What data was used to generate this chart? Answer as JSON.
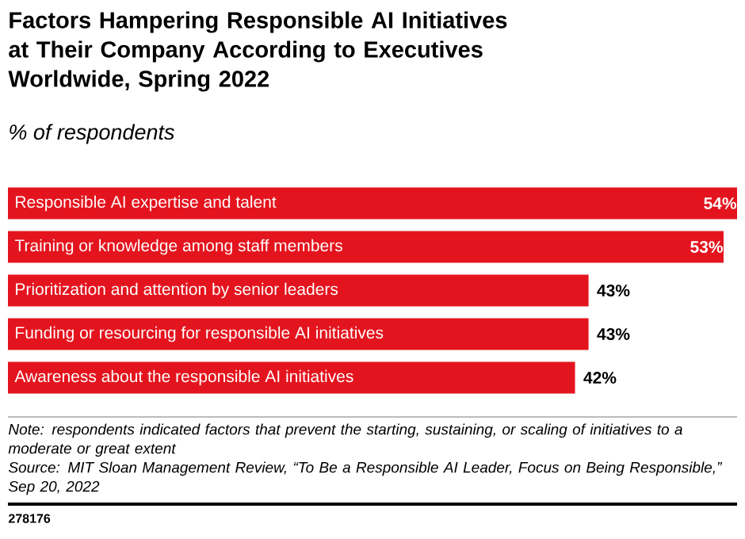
{
  "chart_data": {
    "type": "bar",
    "orientation": "horizontal",
    "title": "Factors Hampering Responsible AI Initiatives at Their Company According to Executives Worldwide, Spring 2022",
    "subtitle": "% of respondents",
    "categories": [
      "Responsible AI expertise and talent",
      "Training or knowledge among staff members",
      "Prioritization and attention by senior leaders",
      "Funding or resourcing for responsible AI initiatives",
      "Awareness about the responsible AI initiatives"
    ],
    "values": [
      54,
      53,
      43,
      43,
      42
    ],
    "value_labels": [
      "54%",
      "53%",
      "43%",
      "43%",
      "42%"
    ],
    "color": "#e4141e",
    "annotations": [
      "Note: respondents indicated factors that prevent the starting, sustaining, or scaling of initiatives to a moderate or great extent",
      "Source: MIT Sloan Management Review, “To Be a Responsible AI Leader, Focus on Being Responsible,” Sep 20, 2022",
      "278176"
    ]
  }
}
